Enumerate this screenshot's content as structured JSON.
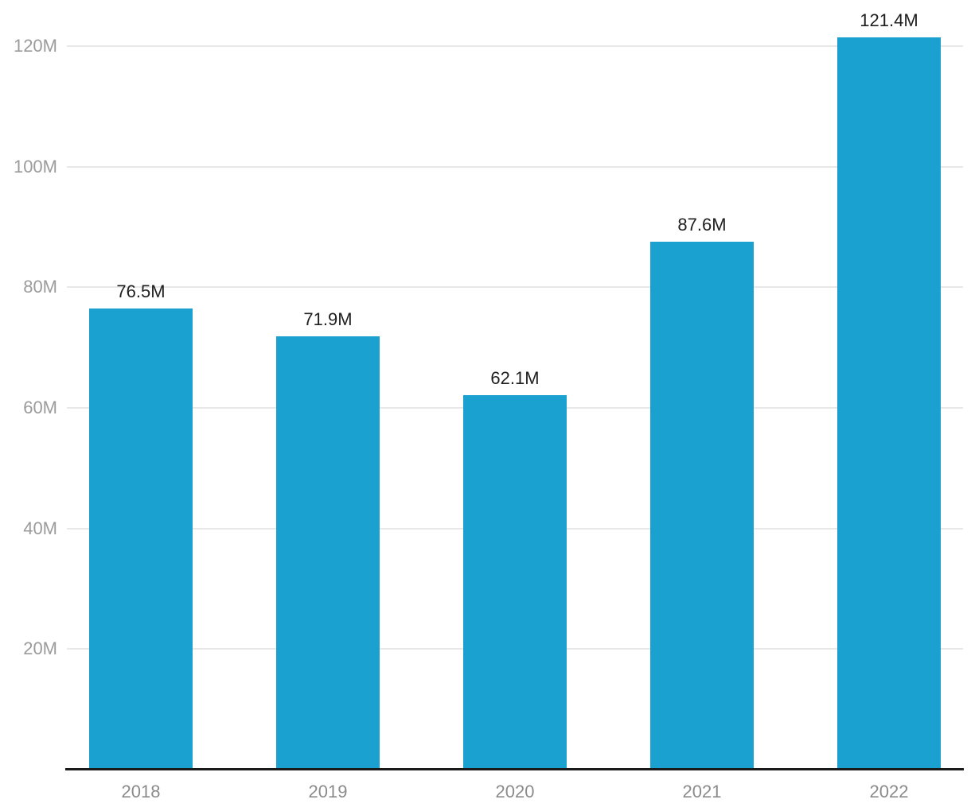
{
  "chart_data": {
    "type": "bar",
    "title": "",
    "xlabel": "",
    "ylabel": "",
    "categories": [
      "2018",
      "2019",
      "2020",
      "2021",
      "2022"
    ],
    "values": [
      76.5,
      71.9,
      62.1,
      87.6,
      121.4
    ],
    "value_labels": [
      "76.5M",
      "71.9M",
      "62.1M",
      "87.6M",
      "121.4M"
    ],
    "unit": "M",
    "ylim": [
      0,
      124
    ],
    "yticks": [
      20,
      40,
      60,
      80,
      100,
      120
    ],
    "ytick_labels": [
      "20M",
      "40M",
      "60M",
      "80M",
      "100M",
      "120M"
    ],
    "grid": "horizontal",
    "legend": "none",
    "colors": {
      "bar": "#1AA1CF",
      "gridline": "#E8E8E8",
      "axis_line": "#1A1A1A",
      "ytick_text": "#9B9B9B",
      "xtick_text": "#8B8B8B",
      "value_label_text": "#1F1F1F",
      "background": "#FFFFFF"
    }
  }
}
